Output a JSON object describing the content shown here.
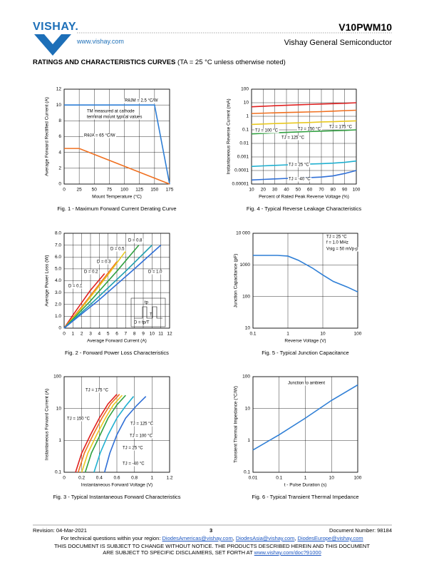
{
  "header": {
    "logo": "VISHAY.",
    "url": "www.vishay.com",
    "part_number": "V10PWM10",
    "company": "Vishay General Semiconductor"
  },
  "section": {
    "title": "RATINGS AND CHARACTERISTICS CURVES",
    "condition": "(TA = 25 °C unless otherwise noted)"
  },
  "chart_data": [
    {
      "type": "line",
      "title": "Fig. 1 - Maximum Forward Current Derating Curve",
      "xlabel": "Mount Temperature (°C)",
      "ylabel": "Average Forward Rectified Current (A)",
      "xlim": [
        0,
        175
      ],
      "ylim": [
        0,
        12
      ],
      "xticks": [
        0,
        25,
        50,
        75,
        100,
        125,
        150,
        175
      ],
      "yticks": [
        0,
        2,
        4,
        6,
        8,
        10,
        12
      ],
      "grid": true,
      "series": [
        {
          "name": "RθJM = 2.5 °C/W",
          "color": "#2f7fd6",
          "x": [
            0,
            150,
            175
          ],
          "values": [
            10,
            10,
            0
          ]
        },
        {
          "name": "RθJA = 65 °C/W",
          "color": "#f07020",
          "x": [
            0,
            25,
            175
          ],
          "values": [
            4.5,
            4.5,
            0
          ]
        }
      ],
      "annotations": [
        "TM measured at cathode",
        "terminal mount typical values"
      ]
    },
    {
      "type": "line",
      "title": "Fig. 2 - Forward Power Loss Characteristics",
      "xlabel": "Average Forward Current (A)",
      "ylabel": "Average Power Loss (W)",
      "xlim": [
        0,
        12
      ],
      "ylim": [
        0,
        8
      ],
      "xticks": [
        0,
        1,
        2,
        3,
        4,
        5,
        6,
        7,
        8,
        9,
        10,
        11,
        12
      ],
      "yticks": [
        {
          "value": 0,
          "label": "0"
        },
        {
          "value": 1,
          "label": "1.0"
        },
        {
          "value": 2,
          "label": "2.0"
        },
        {
          "value": 3,
          "label": "3.0"
        },
        {
          "value": 4,
          "label": "4.0"
        },
        {
          "value": 5,
          "label": "5.0"
        },
        {
          "value": 6,
          "label": "6.0"
        },
        {
          "value": 7,
          "label": "7.0"
        },
        {
          "value": 8,
          "label": "8.0"
        }
      ],
      "grid": true,
      "series": [
        {
          "name": "D = 0.1",
          "color": "#e02020",
          "x": [
            0,
            1,
            3,
            4.6
          ],
          "values": [
            0,
            1.1,
            3.2,
            4.6
          ]
        },
        {
          "name": "D = 0.2",
          "color": "#f07020",
          "x": [
            0,
            2,
            4,
            6
          ],
          "values": [
            0,
            1.8,
            3.7,
            5.6
          ]
        },
        {
          "name": "D = 0.3",
          "color": "#e8c820",
          "x": [
            0,
            2,
            5,
            7
          ],
          "values": [
            0,
            1.7,
            4.5,
            6.5
          ]
        },
        {
          "name": "D = 0.5",
          "color": "#30a040",
          "x": [
            0,
            3,
            6,
            8.5
          ],
          "values": [
            0,
            2.3,
            4.8,
            7
          ]
        },
        {
          "name": "D = 0.8",
          "color": "#20a0b0",
          "x": [
            0,
            3,
            7,
            10
          ],
          "values": [
            0,
            2,
            4.8,
            7
          ]
        },
        {
          "name": "D = 1.0",
          "color": "#2f6fd6",
          "x": [
            0,
            4,
            8,
            11
          ],
          "values": [
            0,
            2.4,
            5,
            7
          ]
        }
      ],
      "annotations": [
        "D = tp/T",
        "tp",
        "T"
      ]
    },
    {
      "type": "line",
      "title": "Fig. 3 - Typical Instantaneous Forward Characteristics",
      "xlabel": "Instantaneous Forward Voltage (V)",
      "ylabel": "Instantaneous Forward Current (A)",
      "xlim": [
        0,
        1.2
      ],
      "ylim": [
        0.1,
        100
      ],
      "ylog": true,
      "xticks": [
        0,
        0.2,
        0.4,
        0.6,
        0.8,
        1,
        1.2
      ],
      "yticks": [
        0.1,
        1,
        10,
        100
      ],
      "grid": true,
      "series": [
        {
          "name": "TJ = 175 °C",
          "color": "#e02020",
          "x": [
            0.13,
            0.2,
            0.3,
            0.4,
            0.5,
            0.6
          ],
          "values": [
            0.1,
            0.4,
            1.5,
            5,
            14,
            28
          ]
        },
        {
          "name": "TJ = 150 °C",
          "color": "#f07020",
          "x": [
            0.16,
            0.23,
            0.33,
            0.43,
            0.53,
            0.63
          ],
          "values": [
            0.1,
            0.4,
            1.5,
            5,
            14,
            28
          ]
        },
        {
          "name": "TJ = 125 °C",
          "color": "#e8c820",
          "x": [
            0.2,
            0.27,
            0.37,
            0.47,
            0.56,
            0.66
          ],
          "values": [
            0.1,
            0.4,
            1.5,
            5,
            13,
            26
          ]
        },
        {
          "name": "TJ = 100 °C",
          "color": "#30a040",
          "x": [
            0.24,
            0.31,
            0.41,
            0.5,
            0.6,
            0.7
          ],
          "values": [
            0.1,
            0.4,
            1.5,
            5,
            13,
            26
          ]
        },
        {
          "name": "TJ = 25 °C",
          "color": "#20b0d0",
          "x": [
            0.34,
            0.41,
            0.5,
            0.6,
            0.7,
            0.79
          ],
          "values": [
            0.1,
            0.4,
            1.5,
            5,
            12,
            24
          ]
        },
        {
          "name": "TJ = -40 °C",
          "color": "#2f6fd6",
          "x": [
            0.46,
            0.52,
            0.6,
            0.7,
            0.82,
            0.93
          ],
          "values": [
            0.1,
            0.4,
            1.5,
            5,
            12,
            24
          ]
        }
      ]
    },
    {
      "type": "line",
      "title": "Fig. 4 - Typical Reverse Leakage Characteristics",
      "xlabel": "Percent of Rated Peak Reverse Voltage (%)",
      "ylabel": "Instantaneous Reverse Current (mA)",
      "xlim": [
        10,
        100
      ],
      "ylim": [
        1e-05,
        100
      ],
      "ylog": true,
      "xticks": [
        10,
        20,
        30,
        40,
        50,
        60,
        70,
        80,
        90,
        100
      ],
      "yticks": [
        1e-05,
        0.0001,
        0.001,
        0.01,
        0.1,
        1,
        10,
        100
      ],
      "grid": true,
      "x": [
        10,
        20,
        30,
        40,
        50,
        60,
        70,
        80,
        90,
        100
      ],
      "series": [
        {
          "name": "TJ = 175 °C",
          "color": "#e02020",
          "values": [
            5,
            5.5,
            6,
            6.5,
            7,
            7.5,
            8,
            8.5,
            9,
            10
          ]
        },
        {
          "name": "TJ = 150 °C",
          "color": "#f07020",
          "values": [
            1.6,
            1.7,
            1.8,
            1.9,
            2,
            2.1,
            2.2,
            2.4,
            2.6,
            2.8
          ]
        },
        {
          "name": "TJ = 125 °C",
          "color": "#e8c820",
          "values": [
            0.25,
            0.27,
            0.29,
            0.31,
            0.33,
            0.35,
            0.38,
            0.4,
            0.43,
            0.46
          ]
        },
        {
          "name": "TJ = 100 °C",
          "color": "#30a040",
          "values": [
            0.05,
            0.055,
            0.06,
            0.065,
            0.07,
            0.075,
            0.08,
            0.085,
            0.09,
            0.1
          ]
        },
        {
          "name": "TJ = 25 °C",
          "color": "#20b0d0",
          "values": [
            0.0002,
            0.00022,
            0.00024,
            0.00026,
            0.00028,
            0.0003,
            0.00032,
            0.00035,
            0.0004,
            0.0005
          ]
        },
        {
          "name": "TJ = -40 °C",
          "color": "#2f6fd6",
          "values": [
            2e-05,
            2.2e-05,
            2.4e-05,
            2.6e-05,
            2.8e-05,
            3e-05,
            3.3e-05,
            4e-05,
            6e-05,
            0.0001
          ]
        }
      ]
    },
    {
      "type": "line",
      "title": "Fig. 5 - Typical Junction Capacitance",
      "xlabel": "Reverse Voltage (V)",
      "ylabel": "Junction Capacitance (pF)",
      "xlim": [
        0.1,
        100
      ],
      "ylim": [
        10,
        10000
      ],
      "xlog": true,
      "ylog": true,
      "xticks": [
        0.1,
        1,
        10,
        100
      ],
      "yticks": [
        10,
        100,
        1000,
        {
          "value": 10000,
          "label": "10 000"
        }
      ],
      "grid": true,
      "series": [
        {
          "name": "Capacitance",
          "color": "#2f7fd6",
          "x": [
            0.1,
            0.5,
            1,
            2,
            5,
            10,
            20,
            50,
            100
          ],
          "values": [
            2000,
            2000,
            1900,
            1400,
            800,
            480,
            300,
            200,
            140
          ]
        }
      ],
      "annotations": [
        "TJ = 25 °C",
        "f = 1.0 MHz",
        "Vsig = 50 mVp-p"
      ]
    },
    {
      "type": "line",
      "title": "Fig. 6 - Typical Transient Thermal Impedance",
      "xlabel": "t - Pulse Duration (s)",
      "ylabel": "Transient Thermal Impedance (°C/W)",
      "xlim": [
        0.01,
        100
      ],
      "ylim": [
        0.1,
        100
      ],
      "xlog": true,
      "ylog": true,
      "xticks": [
        0.01,
        0.1,
        1,
        10,
        100
      ],
      "yticks": [
        0.1,
        1,
        10,
        100
      ],
      "grid": true,
      "series": [
        {
          "name": "Impedance",
          "color": "#2f7fd6",
          "x": [
            0.01,
            0.1,
            1,
            10,
            100
          ],
          "values": [
            0.5,
            1.5,
            5,
            18,
            55
          ]
        }
      ],
      "annotations": [
        "Junction to ambient"
      ]
    }
  ],
  "footer": {
    "revision": "Revision: 04-Mar-2021",
    "page": "3",
    "document_number": "Document Number: 98184",
    "contact": "For technical questions within your region:",
    "emails": [
      "DiodesAmericas@vishay.com",
      "DiodesAsia@vishay.com",
      "DiodesEurope@vishay.com"
    ],
    "disclaimer1": "THIS DOCUMENT IS SUBJECT TO CHANGE WITHOUT NOTICE. THE PRODUCTS DESCRIBED HEREIN AND THIS DOCUMENT",
    "disclaimer2": "ARE SUBJECT TO SPECIFIC DISCLAIMERS, SET FORTH AT",
    "disclaimer_link": "www.vishay.com/doc?91000"
  }
}
